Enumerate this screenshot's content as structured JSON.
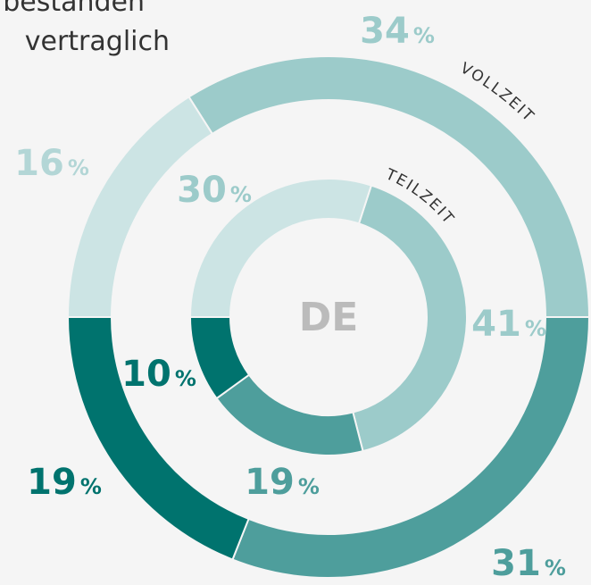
{
  "chart_data": {
    "type": "pie",
    "text_lines": [
      "bestanden",
      "vertraglich"
    ],
    "center_label": "DE",
    "series": [
      {
        "name": "VOLLZEIT",
        "values": [
          34,
          31,
          19,
          16
        ],
        "value_labels": [
          "34 %",
          "31 %",
          "19 %",
          "16 %"
        ],
        "colors": [
          "#9ccbca",
          "#4e9e9c",
          "#00736e",
          "#cce4e4"
        ]
      },
      {
        "name": "TEILZEIT",
        "values": [
          41,
          19,
          10,
          30
        ],
        "value_labels": [
          "41 %",
          "19 %",
          "10 %",
          "30 %"
        ],
        "colors": [
          "#9ccbca",
          "#4e9e9c",
          "#00736e",
          "#cce4e4"
        ]
      }
    ]
  }
}
